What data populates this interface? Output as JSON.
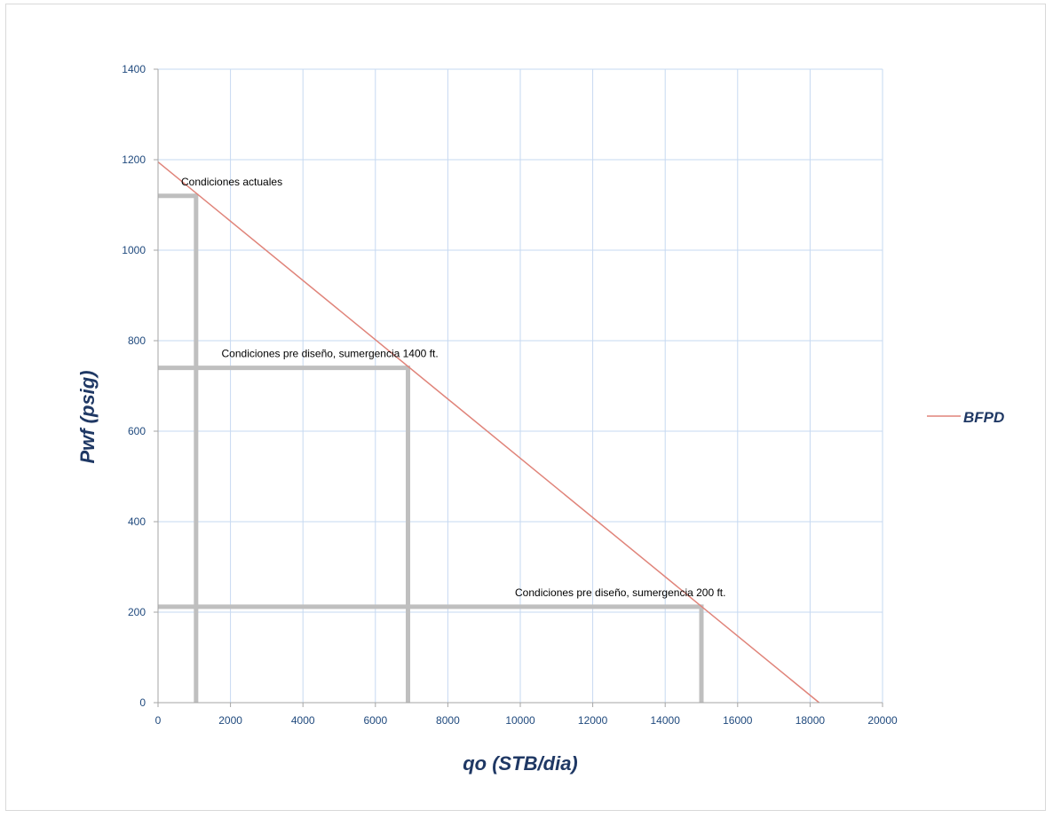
{
  "chart_data": {
    "type": "line",
    "xlabel": "qo (STB/dia)",
    "ylabel": "Pwf (psig)",
    "xlim": [
      0,
      20000
    ],
    "ylim": [
      0,
      1400
    ],
    "xticks": [
      0,
      2000,
      4000,
      6000,
      8000,
      10000,
      12000,
      14000,
      16000,
      18000,
      20000
    ],
    "yticks": [
      0,
      200,
      400,
      600,
      800,
      1000,
      1200,
      1400
    ],
    "grid": true,
    "legend_position": "right",
    "series": [
      {
        "name": "BFPD",
        "color": "#e0847a",
        "x": [
          0,
          18250
        ],
        "y": [
          1195,
          0
        ]
      }
    ],
    "operating_points": [
      {
        "label": "Condiciones actuales",
        "q": 1050,
        "pwf": 1120
      },
      {
        "label": "Condiciones pre diseño, sumergencia 1400 ft.",
        "q": 6900,
        "pwf": 740
      },
      {
        "label": "Condiciones pre diseño, sumergencia 200 ft.",
        "q": 15000,
        "pwf": 212
      }
    ],
    "guide_color": "#bfbfbf",
    "grid_color": "#c6d9f1"
  }
}
